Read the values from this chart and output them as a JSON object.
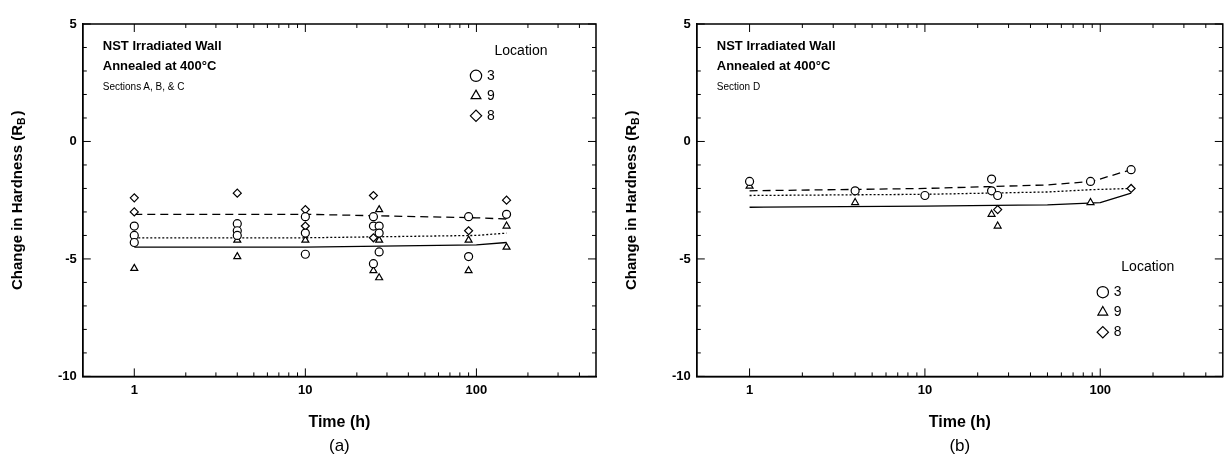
{
  "chart_data": [
    {
      "type": "scatter",
      "title": "NST Irradiated Wall",
      "subtitle": "Annealed at 400°C",
      "xlabel": "Time (h)",
      "ylabel": "Change in Hardness (R$_{B}$)",
      "legend_title": "Location",
      "legend": "top right",
      "log": "x",
      "annotations": [
        "Sections A, B, & C",
        "(a)"
      ],
      "xlim": [
        0.5,
        500
      ],
      "xticks": [
        1,
        {
          "value": 2,
          "label": null
        },
        {
          "value": 3,
          "label": null
        },
        {
          "value": 4,
          "label": null
        },
        {
          "value": 5,
          "label": null
        },
        {
          "value": 6,
          "label": null
        },
        {
          "value": 7,
          "label": null
        },
        {
          "value": 8,
          "label": null
        },
        {
          "value": 9,
          "label": null
        },
        10,
        {
          "value": 20,
          "label": null
        },
        {
          "value": 30,
          "label": null
        },
        {
          "value": 40,
          "label": null
        },
        {
          "value": 50,
          "label": null
        },
        {
          "value": 60,
          "label": null
        },
        {
          "value": 70,
          "label": null
        },
        {
          "value": 80,
          "label": null
        },
        {
          "value": 90,
          "label": null
        },
        100,
        {
          "value": 200,
          "label": null
        },
        {
          "value": 300,
          "label": null
        },
        {
          "value": 400,
          "label": null
        }
      ],
      "ylim": [
        -10,
        5
      ],
      "yticks": [
        -10,
        {
          "value": -9,
          "label": null
        },
        {
          "value": -8,
          "label": null
        },
        {
          "value": -7,
          "label": null
        },
        {
          "value": -6,
          "label": null
        },
        -5,
        {
          "value": -4,
          "label": null
        },
        {
          "value": -3,
          "label": null
        },
        {
          "value": -2,
          "label": null
        },
        {
          "value": -1,
          "label": null
        },
        0,
        {
          "value": 1,
          "label": null
        },
        {
          "value": 2,
          "label": null
        },
        {
          "value": 3,
          "label": null
        },
        {
          "value": 4,
          "label": null
        },
        5
      ],
      "series": [
        {
          "name": "3",
          "type": "scatter",
          "marker": "circle",
          "line_style": "dotted",
          "color": "#000000",
          "x": [
            1,
            1,
            1,
            4,
            4,
            4,
            10,
            10,
            10,
            25,
            25,
            25,
            27,
            27,
            27,
            90,
            90,
            150
          ],
          "values": [
            -3.6,
            -4.0,
            -4.3,
            -3.5,
            -3.8,
            -4.0,
            -3.2,
            -3.9,
            -4.8,
            -3.2,
            -3.6,
            -5.2,
            -3.6,
            -3.9,
            -4.7,
            -3.2,
            -4.9,
            -3.1
          ]
        },
        {
          "name": "9",
          "type": "scatter",
          "marker": "triangle",
          "line_style": "solid",
          "color": "#000000",
          "x": [
            1,
            4,
            4,
            10,
            25,
            27,
            27,
            27,
            90,
            90,
            150,
            150
          ],
          "values": [
            -5.4,
            -4.9,
            -4.2,
            -4.2,
            -5.5,
            -2.9,
            -4.2,
            -5.8,
            -4.2,
            -5.5,
            -3.6,
            -4.5
          ]
        },
        {
          "name": "8",
          "type": "scatter",
          "marker": "diamond",
          "line_style": "dashed",
          "color": "#000000",
          "x": [
            1,
            1,
            4,
            10,
            10,
            25,
            25,
            90,
            150
          ],
          "values": [
            -2.4,
            -3.0,
            -2.2,
            -2.9,
            -3.6,
            -2.3,
            -4.1,
            -3.8,
            -2.5
          ]
        },
        {
          "type": "line",
          "line_style": "dotted",
          "color": "#000000",
          "x": [
            1,
            10,
            100,
            150
          ],
          "values": [
            -4.1,
            -4.1,
            -4.0,
            -3.9
          ]
        },
        {
          "type": "line",
          "line_style": "solid",
          "color": "#000000",
          "x": [
            1,
            10,
            100,
            150
          ],
          "values": [
            -4.5,
            -4.5,
            -4.4,
            -4.3
          ]
        },
        {
          "type": "line",
          "line_style": "dashed",
          "color": "#000000",
          "x": [
            1,
            10,
            100,
            150
          ],
          "values": [
            -3.1,
            -3.1,
            -3.25,
            -3.3
          ]
        }
      ]
    },
    {
      "type": "scatter",
      "title": "NST Irradiated Wall",
      "subtitle": "Annealed at 400°C",
      "xlabel": "Time (h)",
      "ylabel": "Change in Hardness (R$_{B}$)",
      "legend_title": "Location",
      "legend": "bottom right",
      "log": "x",
      "annotations": [
        "Section D",
        "(b)"
      ],
      "xlim": [
        0.5,
        500
      ],
      "xticks": [
        1,
        {
          "value": 2,
          "label": null
        },
        {
          "value": 3,
          "label": null
        },
        {
          "value": 4,
          "label": null
        },
        {
          "value": 5,
          "label": null
        },
        {
          "value": 6,
          "label": null
        },
        {
          "value": 7,
          "label": null
        },
        {
          "value": 8,
          "label": null
        },
        {
          "value": 9,
          "label": null
        },
        10,
        {
          "value": 20,
          "label": null
        },
        {
          "value": 30,
          "label": null
        },
        {
          "value": 40,
          "label": null
        },
        {
          "value": 50,
          "label": null
        },
        {
          "value": 60,
          "label": null
        },
        {
          "value": 70,
          "label": null
        },
        {
          "value": 80,
          "label": null
        },
        {
          "value": 90,
          "label": null
        },
        100,
        {
          "value": 200,
          "label": null
        },
        {
          "value": 300,
          "label": null
        },
        {
          "value": 400,
          "label": null
        }
      ],
      "ylim": [
        -10,
        5
      ],
      "yticks": [
        -10,
        {
          "value": -9,
          "label": null
        },
        {
          "value": -8,
          "label": null
        },
        {
          "value": -7,
          "label": null
        },
        {
          "value": -6,
          "label": null
        },
        -5,
        {
          "value": -4,
          "label": null
        },
        {
          "value": -3,
          "label": null
        },
        {
          "value": -2,
          "label": null
        },
        {
          "value": -1,
          "label": null
        },
        0,
        {
          "value": 1,
          "label": null
        },
        {
          "value": 2,
          "label": null
        },
        {
          "value": 3,
          "label": null
        },
        {
          "value": 4,
          "label": null
        },
        5
      ],
      "series": [
        {
          "name": "3",
          "type": "scatter",
          "marker": "circle",
          "line_style": "dashed",
          "color": "#000000",
          "x": [
            1,
            4,
            10,
            24,
            24,
            26,
            88,
            150
          ],
          "values": [
            -1.7,
            -2.1,
            -2.3,
            -1.6,
            -2.1,
            -2.3,
            -1.7,
            -1.2
          ]
        },
        {
          "name": "9",
          "type": "scatter",
          "marker": "triangle",
          "line_style": "solid",
          "color": "#000000",
          "x": [
            1,
            4,
            24,
            26,
            88
          ],
          "values": [
            -1.9,
            -2.6,
            -3.1,
            -3.6,
            -2.6
          ]
        },
        {
          "name": "8",
          "type": "scatter",
          "marker": "diamond",
          "line_style": "dotted",
          "color": "#000000",
          "x": [
            26,
            150
          ],
          "values": [
            -2.9,
            -2.0
          ]
        },
        {
          "type": "line",
          "line_style": "dashed",
          "color": "#000000",
          "x": [
            1,
            10,
            50,
            90,
            150
          ],
          "values": [
            -2.1,
            -2.0,
            -1.85,
            -1.7,
            -1.2
          ]
        },
        {
          "type": "line",
          "line_style": "solid",
          "color": "#000000",
          "x": [
            1,
            10,
            50,
            100,
            150
          ],
          "values": [
            -2.8,
            -2.75,
            -2.7,
            -2.6,
            -2.2
          ]
        },
        {
          "type": "line",
          "line_style": "dotted",
          "color": "#000000",
          "x": [
            1,
            10,
            50,
            90,
            150
          ],
          "values": [
            -2.3,
            -2.25,
            -2.15,
            -2.05,
            -2.0
          ]
        }
      ]
    }
  ]
}
